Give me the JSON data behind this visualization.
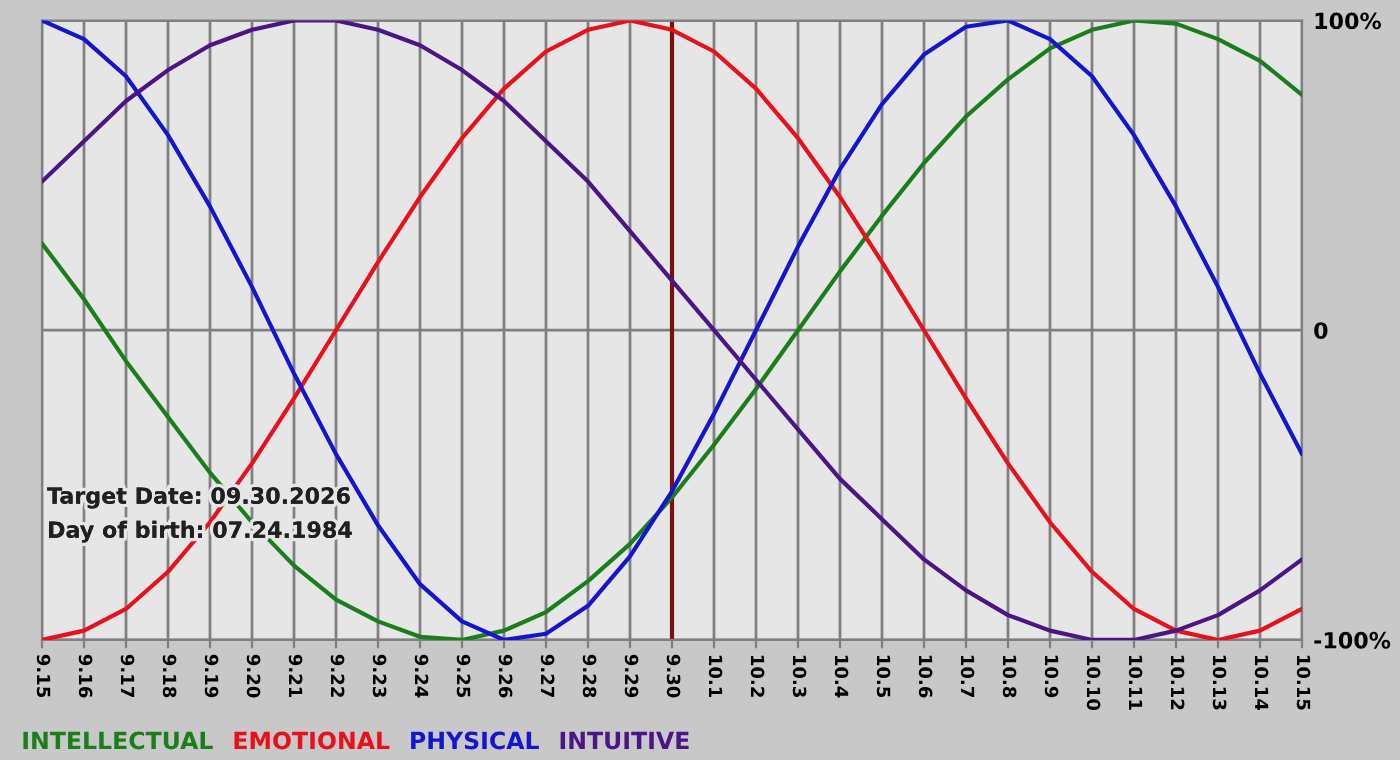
{
  "chart_data": {
    "type": "line",
    "categories": [
      "9.15",
      "9.16",
      "9.17",
      "9.18",
      "9.19",
      "9.20",
      "9.21",
      "9.22",
      "9.23",
      "9.24",
      "9.25",
      "9.26",
      "9.27",
      "9.28",
      "9.29",
      "9.30",
      "10.1",
      "10.2",
      "10.3",
      "10.4",
      "10.5",
      "10.6",
      "10.7",
      "10.8",
      "10.9",
      "10.10",
      "10.11",
      "10.12",
      "10.13",
      "10.14",
      "10.15"
    ],
    "series": [
      {
        "name": "INTELLECTUAL",
        "color": "#1a7f1a",
        "values": [
          28,
          10,
          -10,
          -28,
          -46,
          -62,
          -76,
          -87,
          -94,
          -99,
          -100,
          -97,
          -91,
          -81,
          -69,
          -54,
          -37,
          -19,
          0,
          19,
          37,
          54,
          69,
          81,
          91,
          97,
          100,
          99,
          94,
          87,
          76
        ]
      },
      {
        "name": "EMOTIONAL",
        "color": "#e8111b",
        "values": [
          -100,
          -97,
          -90,
          -78,
          -62,
          -43,
          -22,
          0,
          22,
          43,
          62,
          78,
          90,
          97,
          100,
          97,
          90,
          78,
          62,
          43,
          22,
          0,
          -22,
          -43,
          -62,
          -78,
          -90,
          -97,
          -100,
          -97,
          -90
        ]
      },
      {
        "name": "PHYSICAL",
        "color": "#1515d0",
        "values": [
          100,
          94,
          82,
          63,
          40,
          14,
          -14,
          -40,
          -63,
          -82,
          -94,
          -100,
          -98,
          -89,
          -73,
          -52,
          -27,
          0,
          27,
          52,
          73,
          89,
          98,
          100,
          94,
          82,
          63,
          40,
          14,
          -14,
          -40
        ]
      },
      {
        "name": "INTUITIVE",
        "color": "#4b1585",
        "values": [
          48,
          61,
          74,
          84,
          92,
          97,
          100,
          100,
          97,
          92,
          84,
          74,
          61,
          48,
          32,
          16,
          0,
          -16,
          -32,
          -48,
          -61,
          -74,
          -84,
          -92,
          -97,
          -100,
          -100,
          -97,
          -92,
          -84,
          -74
        ]
      }
    ],
    "ylim": [
      -100,
      100
    ],
    "yticks": [
      {
        "value": 100,
        "label": "100%"
      },
      0,
      {
        "value": -100,
        "label": "-100%"
      }
    ],
    "grid": true,
    "legend": "bottom",
    "ref_lines": [
      {
        "axis": "x",
        "value": "9.30",
        "color": "#7a1010"
      }
    ],
    "annotations": [
      "Target Date: 09.30.2026",
      "Day of birth: 07.24.1984"
    ]
  }
}
